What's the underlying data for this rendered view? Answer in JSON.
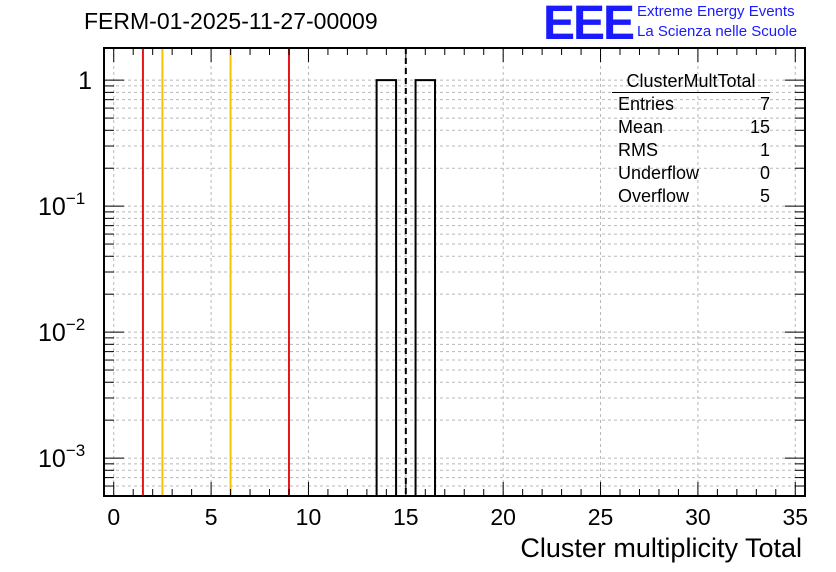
{
  "title": "FERM-01-2025-11-27-00009",
  "brand": {
    "logo": "EEE",
    "line1": "Extreme Energy Events",
    "line2": "La Scienza nelle Scuole"
  },
  "stats": {
    "title": "ClusterMultTotal",
    "rows": [
      {
        "label": "Entries",
        "value": "7"
      },
      {
        "label": "Mean",
        "value": "15"
      },
      {
        "label": "RMS",
        "value": "1"
      },
      {
        "label": "Underflow",
        "value": "0"
      },
      {
        "label": "Overflow",
        "value": "5"
      }
    ]
  },
  "chart_data": {
    "type": "bar",
    "title": "FERM-01-2025-11-27-00009",
    "xlabel": "Cluster multiplicity Total",
    "ylabel": "",
    "xlim": [
      -0.5,
      35.5
    ],
    "ylim": [
      0.0005,
      1.8
    ],
    "yscale": "log",
    "grid": true,
    "x_ticks": [
      0,
      5,
      10,
      15,
      20,
      25,
      30,
      35
    ],
    "y_ticks": [
      {
        "value": 1,
        "label": "1",
        "exp": ""
      },
      {
        "value": 0.1,
        "label": "10",
        "exp": "−1"
      },
      {
        "value": 0.01,
        "label": "10",
        "exp": "−2"
      },
      {
        "value": 0.001,
        "label": "10",
        "exp": "−3"
      }
    ],
    "bins": [
      {
        "x_low": 13.5,
        "x_high": 14.5,
        "value": 1
      },
      {
        "x_low": 15.5,
        "x_high": 16.5,
        "value": 1
      }
    ],
    "vertical_lines": [
      {
        "x": 1.5,
        "color": "#e8141c",
        "style": "solid"
      },
      {
        "x": 2.5,
        "color": "#f5c400",
        "style": "solid"
      },
      {
        "x": 6.0,
        "color": "#f5c400",
        "style": "solid"
      },
      {
        "x": 9.0,
        "color": "#e8141c",
        "style": "solid"
      },
      {
        "x": 15.0,
        "color": "#000000",
        "style": "dashed"
      }
    ]
  }
}
